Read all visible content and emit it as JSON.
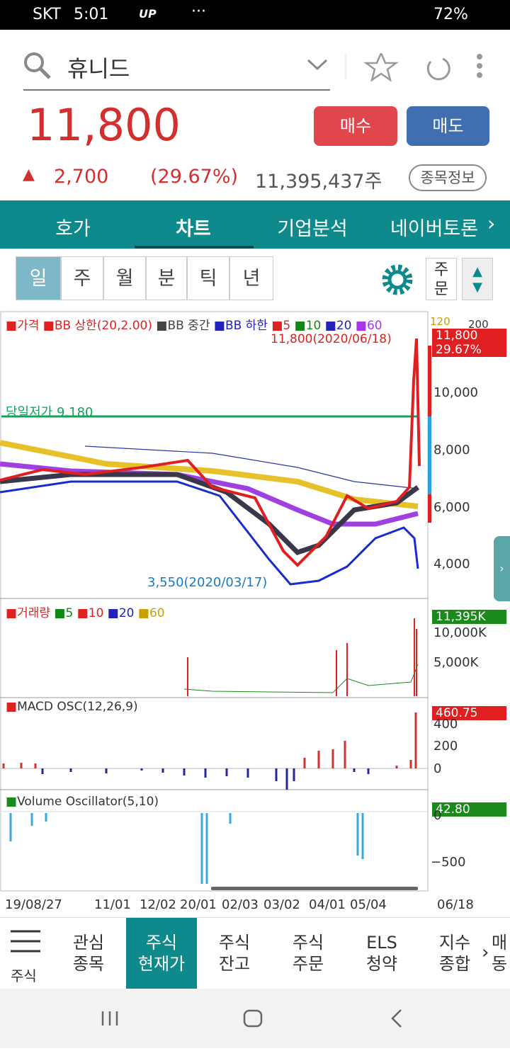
{
  "status_bar": {
    "carrier": "SKT",
    "time": "5:01",
    "up_icon": "UP",
    "battery": "72%"
  },
  "search": {
    "query": "휴니드"
  },
  "quote": {
    "price": "11,800",
    "change": "2,700",
    "change_pct": "(29.67%)",
    "volume": "11,395,437주",
    "buy": "매수",
    "sell": "매도",
    "info": "종목정보"
  },
  "tabs": [
    "호가",
    "차트",
    "기업분석",
    "네이버토론"
  ],
  "periods": [
    "일",
    "주",
    "월",
    "분",
    "틱",
    "년"
  ],
  "order_button": [
    "주",
    "문"
  ],
  "price_panel": {
    "legend": [
      "가격",
      "BB 상한(20,2.00)",
      "BB 중간",
      "BB 하한",
      "5",
      "10",
      "20",
      "60",
      "120"
    ],
    "legend_extra": "200",
    "high_label": "11,800(2020/06/18)",
    "low_label": "3,550(2020/03/17)",
    "day_low": "당일저가 9,180",
    "price_tag": "11,800",
    "pct_tag": "29.67%",
    "axis": [
      "10,000",
      "8,000",
      "6,000",
      "4,000"
    ]
  },
  "volume_panel": {
    "legend": [
      "거래량",
      "5",
      "10",
      "20",
      "60"
    ],
    "tag": "11,395K",
    "axis": [
      "10,000K",
      "5,000K"
    ]
  },
  "macd_panel": {
    "label": "MACD OSC(12,26,9)",
    "tag": "460.75",
    "axis": [
      "400",
      "200",
      "0"
    ]
  },
  "vo_panel": {
    "label": "Volume Oscillator(5,10)",
    "tag": "42.80",
    "axis": [
      "0",
      "−500"
    ]
  },
  "x_axis": [
    "19/08/27",
    "11/01",
    "12/02",
    "20/01",
    "02/03",
    "03/02",
    "04/01",
    "05/04",
    "06/18"
  ],
  "bottom_nav": {
    "menu": "주식",
    "items": [
      [
        "관심",
        "종목"
      ],
      [
        "주식",
        "현재가"
      ],
      [
        "주식",
        "잔고"
      ],
      [
        "주식",
        "주문"
      ],
      [
        "ELS",
        "청약"
      ],
      [
        "지수",
        "종합"
      ],
      [
        "매",
        "동"
      ]
    ]
  }
}
